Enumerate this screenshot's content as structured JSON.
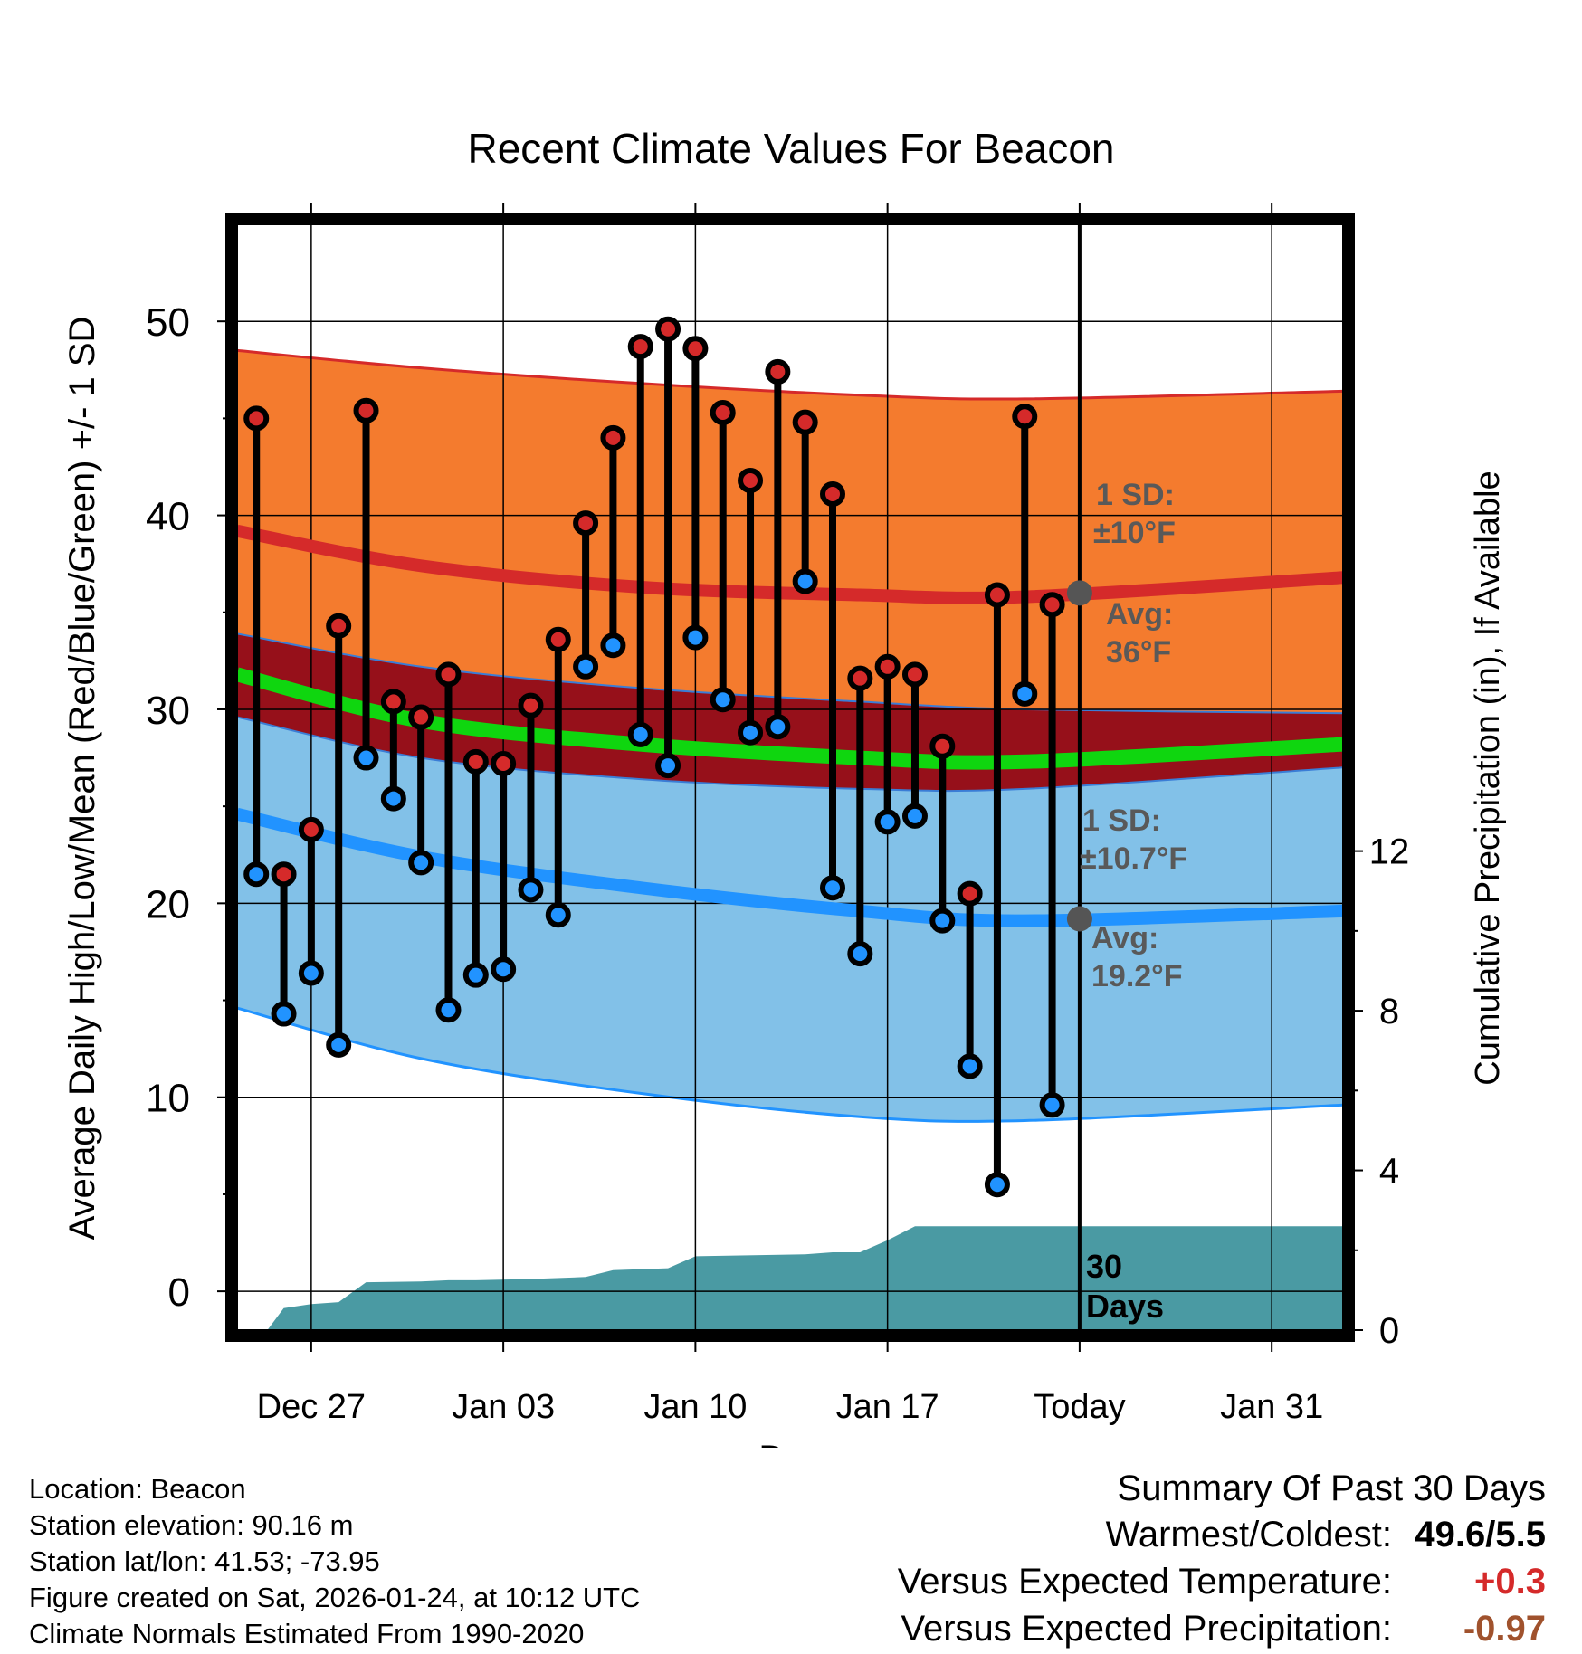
{
  "chart_data": {
    "type": "line",
    "title": "Recent Climate Values For Beacon",
    "xlabel": "Day",
    "ylabel_left": "Average Daily High/Low/Mean (Red/Blue/Green) +/- 1 SD",
    "ylabel_right": "Cumulative Precipitation (in), If Available",
    "ylim_left": [
      -2,
      55
    ],
    "ylim_right": [
      0,
      27.7
    ],
    "y_ticks_left": [
      "0",
      "10",
      "20",
      "30",
      "40",
      "50"
    ],
    "y_ticks_right": [
      "0",
      "4",
      "8",
      "12"
    ],
    "x_tick_labels": [
      "Dec 27",
      "Jan 03",
      "Jan 10",
      "Jan 17",
      "Today",
      "Jan 31"
    ],
    "x_tick_days": [
      0,
      7,
      14,
      21,
      28,
      35
    ],
    "x_range": [
      -2.7,
      37.6
    ],
    "today_day": 28,
    "normals": {
      "high_mean": [
        [
          -2.7,
          39.2
        ],
        [
          4,
          37.4
        ],
        [
          12,
          36.3
        ],
        [
          20,
          35.9
        ],
        [
          26,
          35.8
        ],
        [
          37.6,
          36.8
        ]
      ],
      "high_upper": [
        [
          -2.7,
          48.5
        ],
        [
          4,
          47.6
        ],
        [
          12,
          46.8
        ],
        [
          20,
          46.2
        ],
        [
          26,
          46.0
        ],
        [
          37.6,
          46.4
        ]
      ],
      "high_lower": [
        [
          -2.7,
          33.9
        ],
        [
          4,
          32.2
        ],
        [
          12,
          31.1
        ],
        [
          20,
          30.4
        ],
        [
          26,
          30.0
        ],
        [
          37.6,
          29.8
        ]
      ],
      "low_mean": [
        [
          -2.7,
          24.6
        ],
        [
          4,
          22.4
        ],
        [
          12,
          20.8
        ],
        [
          20,
          19.6
        ],
        [
          26,
          19.1
        ],
        [
          37.6,
          19.6
        ]
      ],
      "low_upper": [
        [
          -2.7,
          29.6
        ],
        [
          4,
          27.5
        ],
        [
          12,
          26.4
        ],
        [
          20,
          25.9
        ],
        [
          26,
          25.9
        ],
        [
          37.6,
          27.0
        ]
      ],
      "low_lower": [
        [
          -2.7,
          14.6
        ],
        [
          4,
          12.0
        ],
        [
          12,
          10.2
        ],
        [
          20,
          9.0
        ],
        [
          26,
          8.8
        ],
        [
          37.6,
          9.6
        ]
      ],
      "mean": [
        [
          -2.7,
          31.8
        ],
        [
          4,
          29.4
        ],
        [
          12,
          28.2
        ],
        [
          20,
          27.5
        ],
        [
          26,
          27.3
        ],
        [
          37.6,
          28.2
        ]
      ]
    },
    "daily": [
      {
        "day": -2,
        "high": 45.0,
        "low": 21.5
      },
      {
        "day": -1,
        "high": 21.5,
        "low": 14.3
      },
      {
        "day": 0,
        "high": 23.8,
        "low": 16.4
      },
      {
        "day": 1,
        "high": 34.3,
        "low": 12.7
      },
      {
        "day": 2,
        "high": 45.4,
        "low": 27.5
      },
      {
        "day": 3,
        "high": 30.4,
        "low": 25.4
      },
      {
        "day": 4,
        "high": 29.6,
        "low": 22.1
      },
      {
        "day": 5,
        "high": 31.8,
        "low": 14.5
      },
      {
        "day": 6,
        "high": 27.3,
        "low": 16.3
      },
      {
        "day": 7,
        "high": 27.2,
        "low": 16.6
      },
      {
        "day": 8,
        "high": 30.2,
        "low": 20.7
      },
      {
        "day": 9,
        "high": 33.6,
        "low": 19.4
      },
      {
        "day": 10,
        "high": 39.6,
        "low": 32.2
      },
      {
        "day": 11,
        "high": 44.0,
        "low": 33.3
      },
      {
        "day": 12,
        "high": 48.7,
        "low": 28.7
      },
      {
        "day": 13,
        "high": 49.6,
        "low": 27.1
      },
      {
        "day": 14,
        "high": 48.6,
        "low": 33.7
      },
      {
        "day": 15,
        "high": 45.3,
        "low": 30.5
      },
      {
        "day": 16,
        "high": 41.8,
        "low": 28.8
      },
      {
        "day": 17,
        "high": 47.4,
        "low": 29.1
      },
      {
        "day": 18,
        "high": 44.8,
        "low": 36.6
      },
      {
        "day": 19,
        "high": 41.1,
        "low": 20.8
      },
      {
        "day": 20,
        "high": 31.6,
        "low": 17.4
      },
      {
        "day": 21,
        "high": 32.2,
        "low": 24.2
      },
      {
        "day": 22,
        "high": 31.8,
        "low": 24.5
      },
      {
        "day": 23,
        "high": 28.1,
        "low": 19.1
      },
      {
        "day": 24,
        "high": 20.5,
        "low": 11.6
      },
      {
        "day": 25,
        "high": 35.9,
        "low": 5.5
      },
      {
        "day": 26,
        "high": 45.1,
        "low": 30.8
      },
      {
        "day": 27,
        "high": 35.4,
        "low": 9.6
      }
    ],
    "precip_cumulative": [
      [
        -2.7,
        0
      ],
      [
        -1.6,
        0
      ],
      [
        -1,
        0.55
      ],
      [
        0,
        0.65
      ],
      [
        1,
        0.7
      ],
      [
        2,
        1.2
      ],
      [
        4,
        1.22
      ],
      [
        5,
        1.25
      ],
      [
        6,
        1.25
      ],
      [
        8,
        1.28
      ],
      [
        10,
        1.33
      ],
      [
        11,
        1.5
      ],
      [
        13,
        1.55
      ],
      [
        14,
        1.85
      ],
      [
        18,
        1.9
      ],
      [
        19,
        1.95
      ],
      [
        20,
        1.95
      ],
      [
        21,
        2.25
      ],
      [
        22,
        2.6
      ],
      [
        28,
        2.6
      ],
      [
        37.6,
        2.6
      ]
    ],
    "annotations": {
      "high_sd_label": "1 SD:",
      "high_sd_value": "±10°F",
      "high_avg_label": "Avg:",
      "high_avg_value": "36°F",
      "high_avg": 36.0,
      "low_sd_label": "1 SD:",
      "low_sd_value": "±10.7°F",
      "low_avg_label": "Avg:",
      "low_avg_value": "19.2°F",
      "low_avg": 19.2,
      "period_label_1": "30",
      "period_label_2": "Days"
    },
    "colors": {
      "high_band": "#f47b2e",
      "high_line": "#d52a2a",
      "low_band": "#82c1e8",
      "low_line": "#2193ff",
      "mean_band": "#96101a",
      "mean_line": "#0fd60f",
      "precip": "#4a9aa3",
      "high_dot": "#d52a2a",
      "low_dot": "#2193ff",
      "annotation": "#595959"
    }
  },
  "footer": {
    "location": "Location: Beacon",
    "elevation": "Station elevation: 90.16 m",
    "latlon": "Station lat/lon: 41.53; -73.95",
    "created": "Figure created on Sat, 2026-01-24, at 10:12 UTC",
    "normals": "Climate Normals Estimated From 1990-2020"
  },
  "summary": {
    "title": "Summary Of Past 30 Days",
    "warmest_label": "Warmest/Coldest:",
    "warmest_value": "49.6/5.5",
    "temp_label": "Versus Expected Temperature:",
    "temp_value": "+0.3",
    "temp_color": "#d52a2a",
    "precip_label": "Versus Expected Precipitation:",
    "precip_value": "-0.97",
    "precip_color": "#a0522d"
  }
}
